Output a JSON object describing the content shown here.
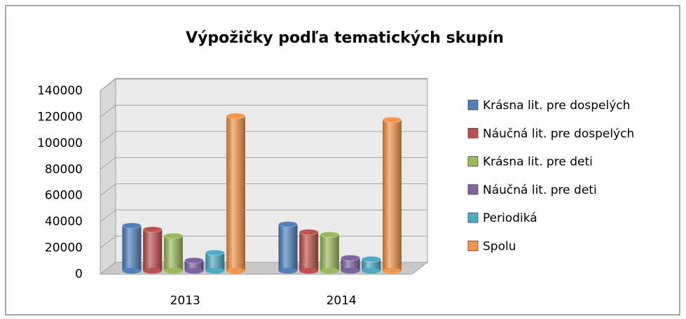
{
  "chart_data": {
    "type": "bar",
    "title": "Výpožičky podľa tematických skupín",
    "categories": [
      "2013",
      "2014"
    ],
    "series": [
      {
        "name": "Krásna lit. pre dospelých",
        "color": "#4f81bd",
        "values": [
          35000,
          36000
        ]
      },
      {
        "name": "Náučná lit. pre dospelých",
        "color": "#c0504d",
        "values": [
          32000,
          30000
        ]
      },
      {
        "name": "Krásna lit. pre deti",
        "color": "#9bbb59",
        "values": [
          27000,
          28000
        ]
      },
      {
        "name": "Náučná lit. pre deti",
        "color": "#8064a2",
        "values": [
          8000,
          10000
        ]
      },
      {
        "name": "Periodiká",
        "color": "#4bacc6",
        "values": [
          14000,
          9000
        ]
      },
      {
        "name": "Spolu",
        "color": "#f79646",
        "values": [
          120000,
          117000
        ]
      }
    ],
    "ylim": [
      0,
      140000
    ],
    "yticks": [
      0,
      20000,
      40000,
      60000,
      80000,
      100000,
      120000,
      140000
    ],
    "grid": true,
    "legend": "right"
  }
}
